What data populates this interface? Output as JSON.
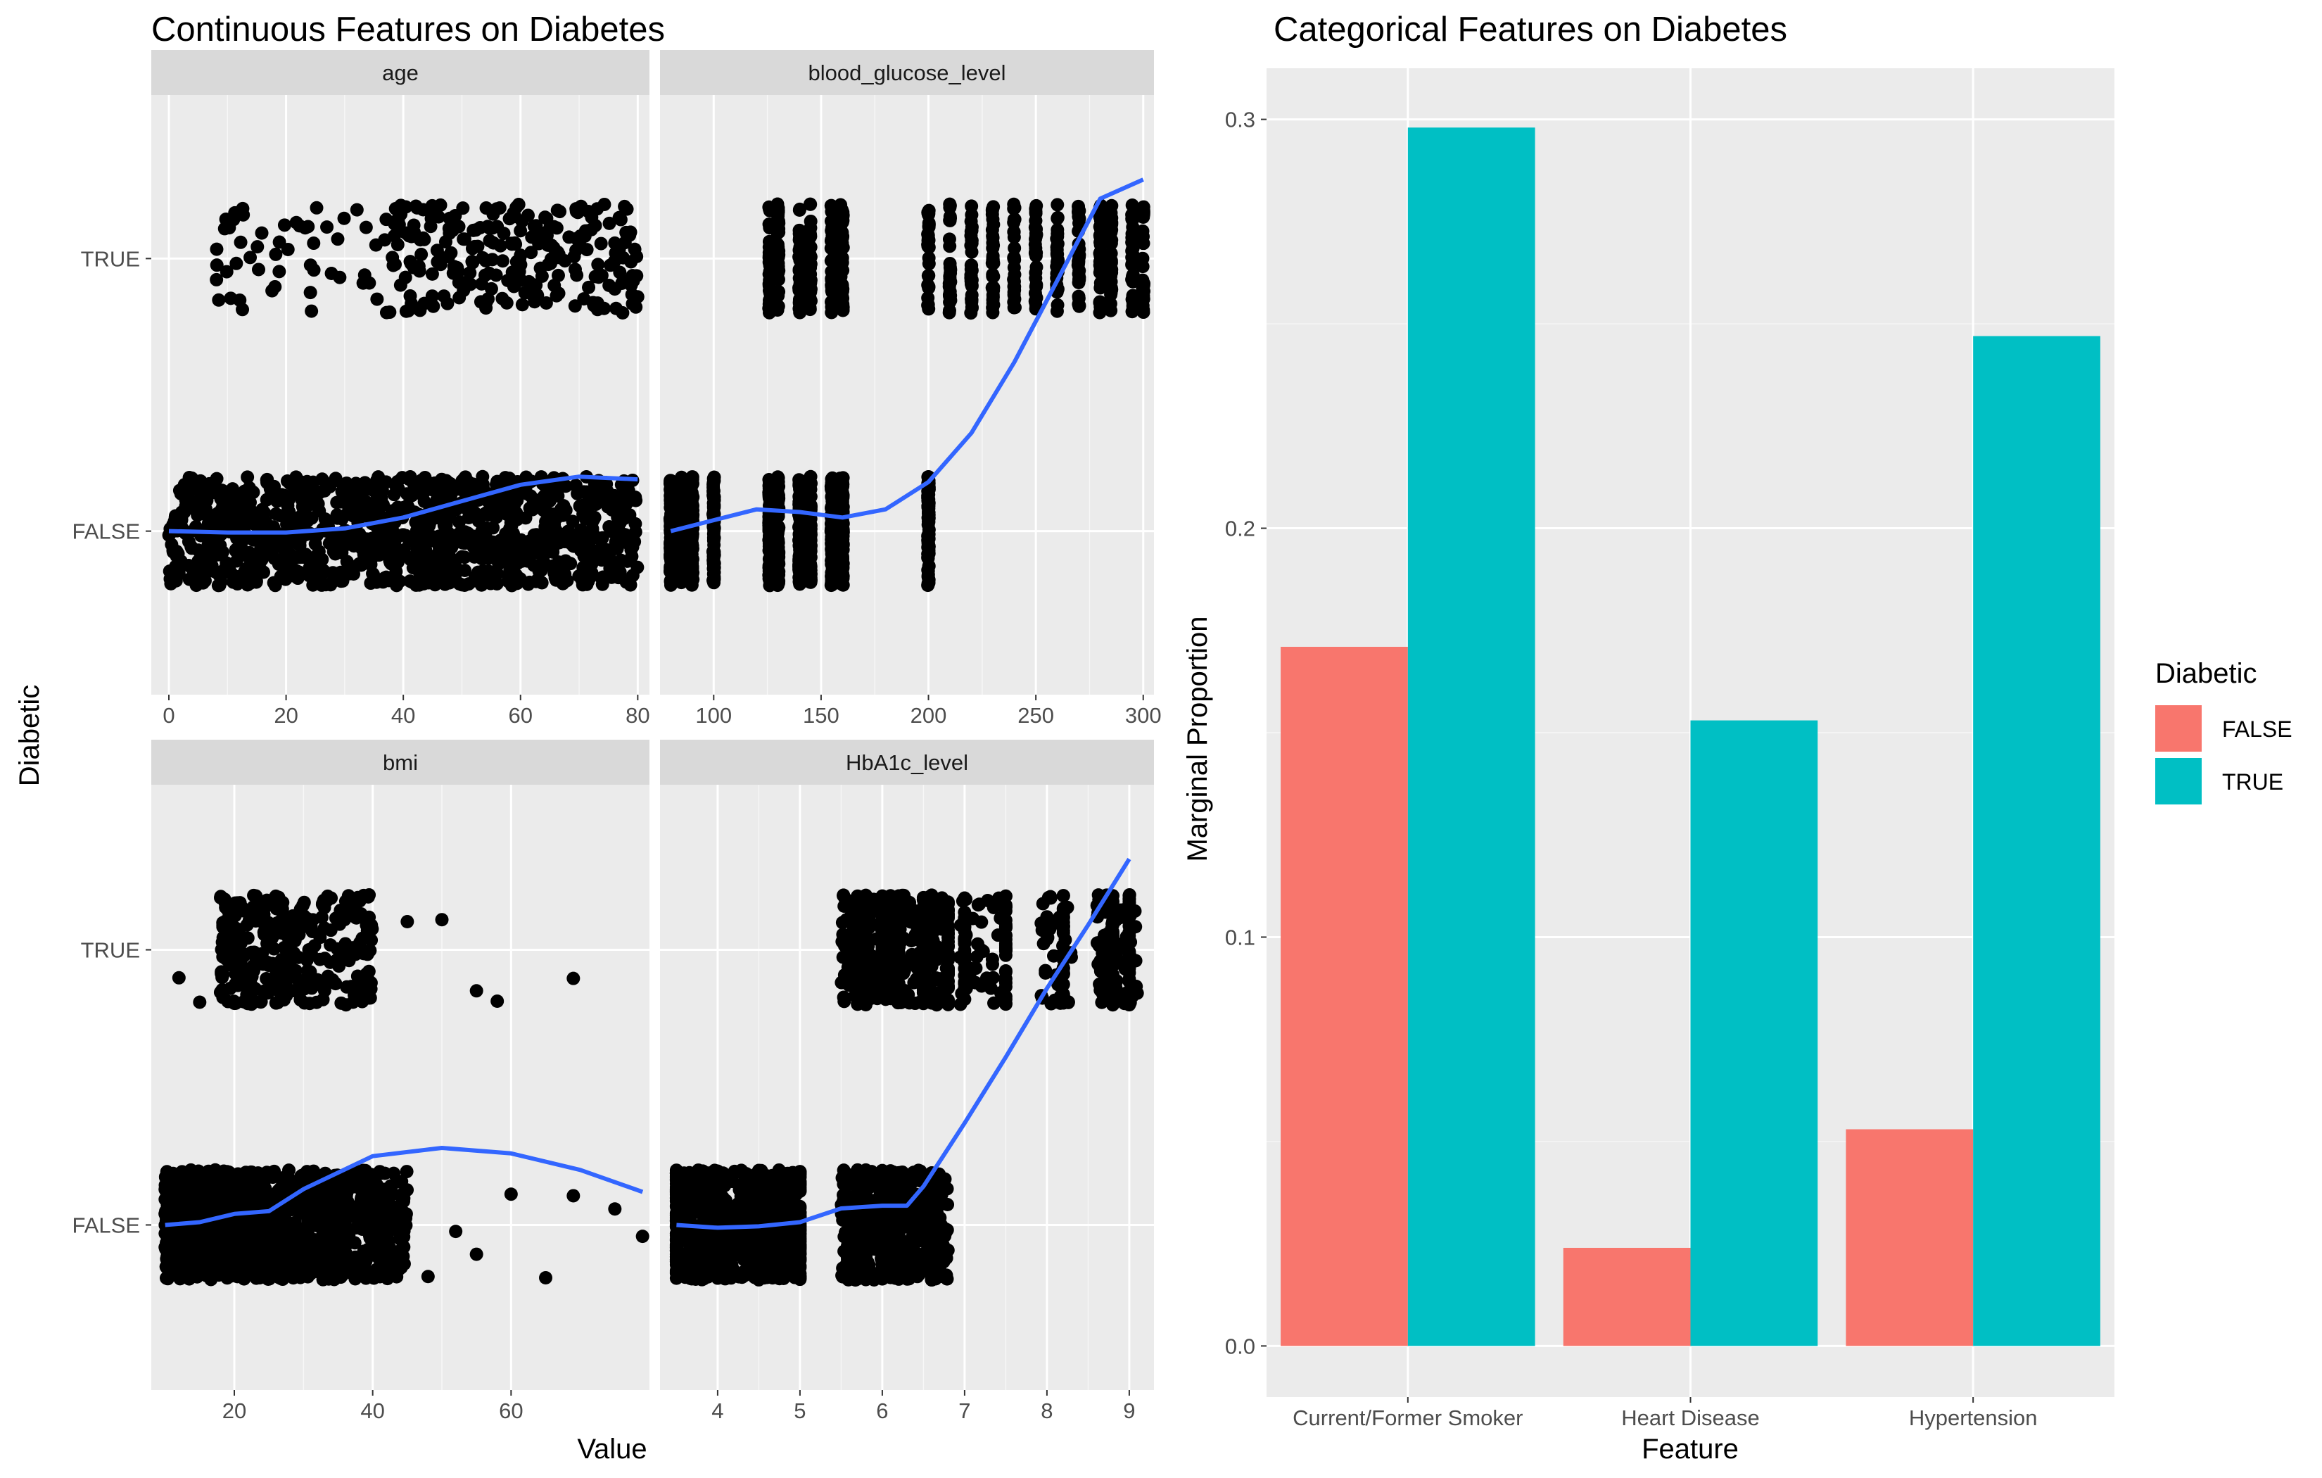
{
  "colors": {
    "panel_bg": "#EBEBEB",
    "strip_bg": "#D9D9D9",
    "grid_major": "#FFFFFF",
    "points": "#000000",
    "smooth_line": "#3366FF",
    "false_fill": "#F8766D",
    "true_fill": "#00BFC4"
  },
  "left_figure": {
    "title": "Continuous Features on Diabetes",
    "x_axis_label": "Value",
    "y_axis_label": "Diabetic",
    "y_levels": [
      "FALSE",
      "TRUE"
    ]
  },
  "right_figure": {
    "title": "Categorical Features on Diabetes",
    "x_axis_label": "Feature",
    "y_axis_label": "Marginal Proportion",
    "legend_title": "Diabetic",
    "legend_items": [
      "FALSE",
      "TRUE"
    ]
  },
  "chart_data": [
    {
      "type": "scatter",
      "facet": "age",
      "title": "Continuous Features on Diabetes",
      "xlabel": "Value",
      "ylabel": "Diabetic",
      "xlim": [
        -3,
        82
      ],
      "x_ticks": [
        0,
        20,
        40,
        60,
        80
      ],
      "y_categories": [
        "FALSE",
        "TRUE"
      ],
      "points": {
        "FALSE": {
          "x_range": [
            0,
            80
          ],
          "distribution": "dense"
        },
        "TRUE": {
          "x_range": [
            8,
            80
          ],
          "distribution": "sparse below 30, dense 40-80"
        }
      },
      "smooth": {
        "x": [
          0,
          10,
          20,
          30,
          40,
          50,
          60,
          70,
          80
        ],
        "y": [
          0.0,
          -0.005,
          -0.005,
          0.01,
          0.05,
          0.11,
          0.17,
          0.2,
          0.19
        ]
      }
    },
    {
      "type": "scatter",
      "facet": "blood_glucose_level",
      "xlim": [
        75,
        305
      ],
      "x_ticks": [
        100,
        150,
        200,
        250,
        300
      ],
      "y_categories": [
        "FALSE",
        "TRUE"
      ],
      "points": {
        "FALSE": {
          "x_values": [
            80,
            85,
            90,
            100,
            126,
            130,
            140,
            145,
            155,
            159,
            160,
            200
          ]
        },
        "TRUE": {
          "x_values": [
            126,
            130,
            140,
            145,
            155,
            159,
            160,
            200,
            210,
            220,
            230,
            240,
            250,
            260,
            270,
            280,
            285,
            295,
            300
          ]
        }
      },
      "smooth": {
        "x": [
          80,
          100,
          120,
          140,
          160,
          180,
          200,
          220,
          240,
          260,
          280,
          300
        ],
        "y": [
          0.0,
          0.04,
          0.08,
          0.07,
          0.05,
          0.08,
          0.18,
          0.36,
          0.62,
          0.92,
          1.22,
          1.29
        ]
      }
    },
    {
      "type": "scatter",
      "facet": "bmi",
      "xlim": [
        8,
        80
      ],
      "x_ticks": [
        20,
        40,
        60
      ],
      "y_categories": [
        "FALSE",
        "TRUE"
      ],
      "points": {
        "FALSE": {
          "x_range": [
            10,
            45
          ],
          "outliers_x": [
            48,
            52,
            55,
            60,
            65,
            69,
            75,
            79
          ]
        },
        "TRUE": {
          "x_range": [
            18,
            40
          ],
          "outliers_x": [
            12,
            15,
            45,
            50,
            55,
            58,
            69
          ]
        }
      },
      "smooth": {
        "x": [
          10,
          15,
          20,
          25,
          30,
          40,
          50,
          60,
          70,
          79
        ],
        "y": [
          0.0,
          0.01,
          0.04,
          0.05,
          0.13,
          0.25,
          0.28,
          0.26,
          0.2,
          0.12
        ]
      }
    },
    {
      "type": "scatter",
      "facet": "HbA1c_level",
      "xlim": [
        3.3,
        9.3
      ],
      "x_ticks": [
        4,
        5,
        6,
        7,
        8,
        9
      ],
      "y_categories": [
        "FALSE",
        "TRUE"
      ],
      "points": {
        "FALSE": {
          "x_values": [
            3.5,
            4.0,
            4.5,
            4.8,
            5.0,
            5.7,
            5.8,
            6.0,
            6.1,
            6.2,
            6.6
          ]
        },
        "TRUE": {
          "x_values": [
            5.7,
            5.8,
            6.0,
            6.1,
            6.2,
            6.5,
            6.6,
            6.8,
            7.0,
            7.5,
            8.2,
            8.8,
            9.0
          ]
        }
      },
      "smooth": {
        "x": [
          3.5,
          4.0,
          4.5,
          5.0,
          5.5,
          6.0,
          6.3,
          6.5,
          7.0,
          7.5,
          8.0,
          8.5,
          9.0
        ],
        "y": [
          0.0,
          -0.01,
          -0.005,
          0.01,
          0.06,
          0.07,
          0.07,
          0.14,
          0.37,
          0.61,
          0.86,
          1.09,
          1.33
        ]
      }
    },
    {
      "type": "bar",
      "title": "Categorical Features on Diabetes",
      "xlabel": "Feature",
      "ylabel": "Marginal Proportion",
      "categories": [
        "Current/Former Smoker",
        "Heart Disease",
        "Hypertension"
      ],
      "series": [
        {
          "name": "FALSE",
          "values": [
            0.171,
            0.024,
            0.053
          ]
        },
        {
          "name": "TRUE",
          "values": [
            0.298,
            0.153,
            0.247
          ]
        }
      ],
      "ylim": [
        -0.0125,
        0.3125
      ],
      "y_ticks": [
        0.0,
        0.1,
        0.2,
        0.3
      ],
      "legend": "right"
    }
  ]
}
